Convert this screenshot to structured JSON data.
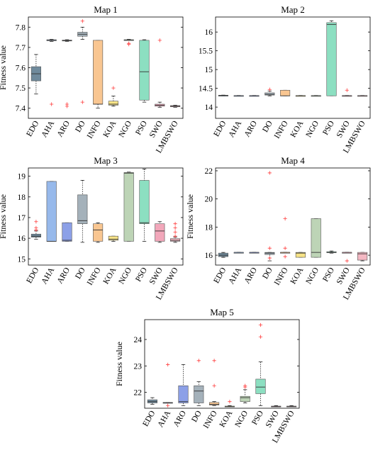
{
  "colors": {
    "EDO": "#5f7d91",
    "AHA": "#8cb1e9",
    "ARO": "#7f96e4",
    "DO": "#9aa8b3",
    "INFO": "#f8c085",
    "KOA": "#f6e07a",
    "NGO": "#b6cfae",
    "PSO": "#7fdcba",
    "SWO": "#f19db2",
    "LMBSWO": "#f3b0bc",
    "outlier": "#ff3b3b"
  },
  "chart_data": [
    {
      "type": "box",
      "title": "Map 1",
      "ylabel": "Fitness value",
      "ylim": [
        7.35,
        7.85
      ],
      "yticks": [
        7.4,
        7.5,
        7.6,
        7.7,
        7.8
      ],
      "categories": [
        "EDO",
        "AHA",
        "ARO",
        "DO",
        "INFO",
        "KOA",
        "NGO",
        "PSO",
        "SWO",
        "LMBSWO"
      ],
      "boxes": [
        {
          "min": 7.47,
          "q1": 7.535,
          "median": 7.57,
          "q3": 7.605,
          "max": 7.665,
          "outliers": []
        },
        {
          "min": 7.73,
          "q1": 7.733,
          "median": 7.735,
          "q3": 7.738,
          "max": 7.74,
          "outliers": [
            7.42
          ]
        },
        {
          "min": 7.73,
          "q1": 7.733,
          "median": 7.734,
          "q3": 7.736,
          "max": 7.738,
          "outliers": [
            7.42,
            7.41
          ]
        },
        {
          "min": 7.74,
          "q1": 7.755,
          "median": 7.765,
          "q3": 7.775,
          "max": 7.8,
          "outliers": [
            7.83,
            7.43
          ]
        },
        {
          "min": 7.4,
          "q1": 7.42,
          "median": 7.42,
          "q3": 7.735,
          "max": 7.735,
          "outliers": []
        },
        {
          "min": 7.41,
          "q1": 7.415,
          "median": 7.42,
          "q3": 7.435,
          "max": 7.46,
          "outliers": [
            7.5
          ]
        },
        {
          "min": 7.735,
          "q1": 7.735,
          "median": 7.737,
          "q3": 7.738,
          "max": 7.74,
          "outliers": [
            7.72,
            7.715
          ]
        },
        {
          "min": 7.43,
          "q1": 7.44,
          "median": 7.58,
          "q3": 7.735,
          "max": 7.738,
          "outliers": []
        },
        {
          "min": 7.405,
          "q1": 7.41,
          "median": 7.415,
          "q3": 7.42,
          "max": 7.43,
          "outliers": [
            7.735
          ]
        },
        {
          "min": 7.405,
          "q1": 7.407,
          "median": 7.41,
          "q3": 7.413,
          "max": 7.415,
          "outliers": []
        }
      ]
    },
    {
      "type": "box",
      "title": "Map 2",
      "ylabel": "",
      "ylim": [
        13.7,
        16.4
      ],
      "yticks": [
        14,
        14.5,
        15,
        15.5,
        16
      ],
      "categories": [
        "EDO",
        "AHA",
        "ARO",
        "DO",
        "INFO",
        "KOA",
        "NGO",
        "PSO",
        "SWO",
        "LMBSWO"
      ],
      "boxes": [
        {
          "min": 14.3,
          "q1": 14.305,
          "median": 14.31,
          "q3": 14.315,
          "max": 14.32,
          "outliers": []
        },
        {
          "min": 14.3,
          "q1": 14.302,
          "median": 14.305,
          "q3": 14.308,
          "max": 14.31,
          "outliers": []
        },
        {
          "min": 14.3,
          "q1": 14.302,
          "median": 14.305,
          "q3": 14.308,
          "max": 14.31,
          "outliers": []
        },
        {
          "min": 14.3,
          "q1": 14.32,
          "median": 14.34,
          "q3": 14.38,
          "max": 14.43,
          "outliers": [
            14.47
          ]
        },
        {
          "min": 14.3,
          "q1": 14.3,
          "median": 14.3,
          "q3": 14.45,
          "max": 14.45,
          "outliers": []
        },
        {
          "min": 14.3,
          "q1": 14.302,
          "median": 14.305,
          "q3": 14.308,
          "max": 14.31,
          "outliers": []
        },
        {
          "min": 14.3,
          "q1": 14.302,
          "median": 14.305,
          "q3": 14.308,
          "max": 14.31,
          "outliers": []
        },
        {
          "min": 14.3,
          "q1": 14.3,
          "median": 16.2,
          "q3": 16.25,
          "max": 16.3,
          "outliers": []
        },
        {
          "min": 14.3,
          "q1": 14.302,
          "median": 14.305,
          "q3": 14.308,
          "max": 14.31,
          "outliers": [
            14.45
          ]
        },
        {
          "min": 14.3,
          "q1": 14.302,
          "median": 14.305,
          "q3": 14.308,
          "max": 14.31,
          "outliers": []
        }
      ]
    },
    {
      "type": "box",
      "title": "Map 3",
      "ylabel": "Fitness value",
      "ylim": [
        14.7,
        19.4
      ],
      "yticks": [
        15,
        16,
        17,
        18,
        19
      ],
      "categories": [
        "EDO",
        "AHA",
        "ARO",
        "DO",
        "INFO",
        "KOA",
        "NGO",
        "PSO",
        "SWO",
        "LMBSWO"
      ],
      "boxes": [
        {
          "min": 15.95,
          "q1": 16.05,
          "median": 16.1,
          "q3": 16.2,
          "max": 16.35,
          "outliers": [
            16.8,
            16.5,
            16.4
          ]
        },
        {
          "min": 15.85,
          "q1": 15.85,
          "median": 15.85,
          "q3": 18.75,
          "max": 18.75,
          "outliers": []
        },
        {
          "min": 15.85,
          "q1": 15.85,
          "median": 15.9,
          "q3": 16.75,
          "max": 16.75,
          "outliers": []
        },
        {
          "min": 15.8,
          "q1": 16.7,
          "median": 16.85,
          "q3": 18.1,
          "max": 18.8,
          "outliers": []
        },
        {
          "min": 15.8,
          "q1": 15.85,
          "median": 16.4,
          "q3": 16.7,
          "max": 16.75,
          "outliers": []
        },
        {
          "min": 15.85,
          "q1": 15.9,
          "median": 15.95,
          "q3": 16.1,
          "max": 16.1,
          "outliers": []
        },
        {
          "min": 15.85,
          "q1": 15.85,
          "median": 19.15,
          "q3": 19.18,
          "max": 19.2,
          "outliers": []
        },
        {
          "min": 15.85,
          "q1": 16.7,
          "median": 16.75,
          "q3": 18.8,
          "max": 19.35,
          "outliers": []
        },
        {
          "min": 15.8,
          "q1": 15.85,
          "median": 16.35,
          "q3": 16.7,
          "max": 16.8,
          "outliers": []
        },
        {
          "min": 15.8,
          "q1": 15.85,
          "median": 15.9,
          "q3": 15.98,
          "max": 16.05,
          "outliers": [
            16.7,
            16.5,
            16.3,
            16.1
          ]
        }
      ]
    },
    {
      "type": "box",
      "title": "Map 4",
      "ylabel": "Fitness value",
      "ylim": [
        15.3,
        22.2
      ],
      "yticks": [
        16,
        18,
        20,
        22
      ],
      "categories": [
        "EDO",
        "AHA",
        "ARO",
        "DO",
        "INFO",
        "KOA",
        "NGO",
        "PSO",
        "SWO",
        "LMBSWO"
      ],
      "boxes": [
        {
          "min": 15.85,
          "q1": 15.9,
          "median": 16.0,
          "q3": 16.15,
          "max": 16.2,
          "outliers": []
        },
        {
          "min": 16.2,
          "q1": 16.2,
          "median": 16.2,
          "q3": 16.2,
          "max": 16.2,
          "outliers": []
        },
        {
          "min": 16.2,
          "q1": 16.2,
          "median": 16.2,
          "q3": 16.2,
          "max": 16.2,
          "outliers": []
        },
        {
          "min": 15.6,
          "q1": 16.05,
          "median": 16.15,
          "q3": 16.2,
          "max": 16.2,
          "outliers": [
            21.85,
            16.5,
            15.8
          ]
        },
        {
          "min": 16.2,
          "q1": 16.2,
          "median": 16.2,
          "q3": 16.2,
          "max": 16.2,
          "outliers": [
            18.6,
            16.5,
            15.9
          ]
        },
        {
          "min": 15.85,
          "q1": 15.85,
          "median": 16.15,
          "q3": 16.2,
          "max": 16.2,
          "outliers": []
        },
        {
          "min": 15.85,
          "q1": 15.85,
          "median": 16.2,
          "q3": 18.6,
          "max": 18.6,
          "outliers": []
        },
        {
          "min": 16.15,
          "q1": 16.18,
          "median": 16.2,
          "q3": 16.25,
          "max": 16.3,
          "outliers": []
        },
        {
          "min": 16.2,
          "q1": 16.2,
          "median": 16.2,
          "q3": 16.2,
          "max": 16.2,
          "outliers": [
            15.6
          ]
        },
        {
          "min": 15.6,
          "q1": 15.65,
          "median": 16.1,
          "q3": 16.2,
          "max": 16.2,
          "outliers": []
        }
      ]
    },
    {
      "type": "box",
      "title": "Map 5",
      "ylabel": "Fitness value",
      "ylim": [
        21.4,
        24.75
      ],
      "yticks": [
        22,
        23,
        24
      ],
      "categories": [
        "EDO",
        "AHA",
        "ARO",
        "DO",
        "INFO",
        "KOA",
        "NGO",
        "PSO",
        "SWO",
        "LMBSWO"
      ],
      "boxes": [
        {
          "min": 21.55,
          "q1": 21.6,
          "median": 21.65,
          "q3": 21.72,
          "max": 21.8,
          "outliers": []
        },
        {
          "min": 21.6,
          "q1": 21.6,
          "median": 21.6,
          "q3": 21.62,
          "max": 21.62,
          "outliers": [
            23.05,
            21.5
          ]
        },
        {
          "min": 21.5,
          "q1": 21.6,
          "median": 21.65,
          "q3": 22.25,
          "max": 23.05,
          "outliers": []
        },
        {
          "min": 21.5,
          "q1": 21.6,
          "median": 22.05,
          "q3": 22.25,
          "max": 22.4,
          "outliers": [
            23.2
          ]
        },
        {
          "min": 21.5,
          "q1": 21.52,
          "median": 21.55,
          "q3": 21.62,
          "max": 21.65,
          "outliers": [
            23.2,
            22.25
          ]
        },
        {
          "min": 21.45,
          "q1": 21.46,
          "median": 21.47,
          "q3": 21.48,
          "max": 21.5,
          "outliers": [
            21.65
          ]
        },
        {
          "min": 21.6,
          "q1": 21.65,
          "median": 21.8,
          "q3": 21.85,
          "max": 22.1,
          "outliers": [
            22.2,
            22.25
          ]
        },
        {
          "min": 21.5,
          "q1": 21.95,
          "median": 22.2,
          "q3": 22.5,
          "max": 23.15,
          "outliers": [
            24.55,
            24.1
          ]
        },
        {
          "min": 21.45,
          "q1": 21.46,
          "median": 21.47,
          "q3": 21.48,
          "max": 21.5,
          "outliers": []
        },
        {
          "min": 21.45,
          "q1": 21.46,
          "median": 21.47,
          "q3": 21.48,
          "max": 21.5,
          "outliers": []
        }
      ]
    }
  ]
}
